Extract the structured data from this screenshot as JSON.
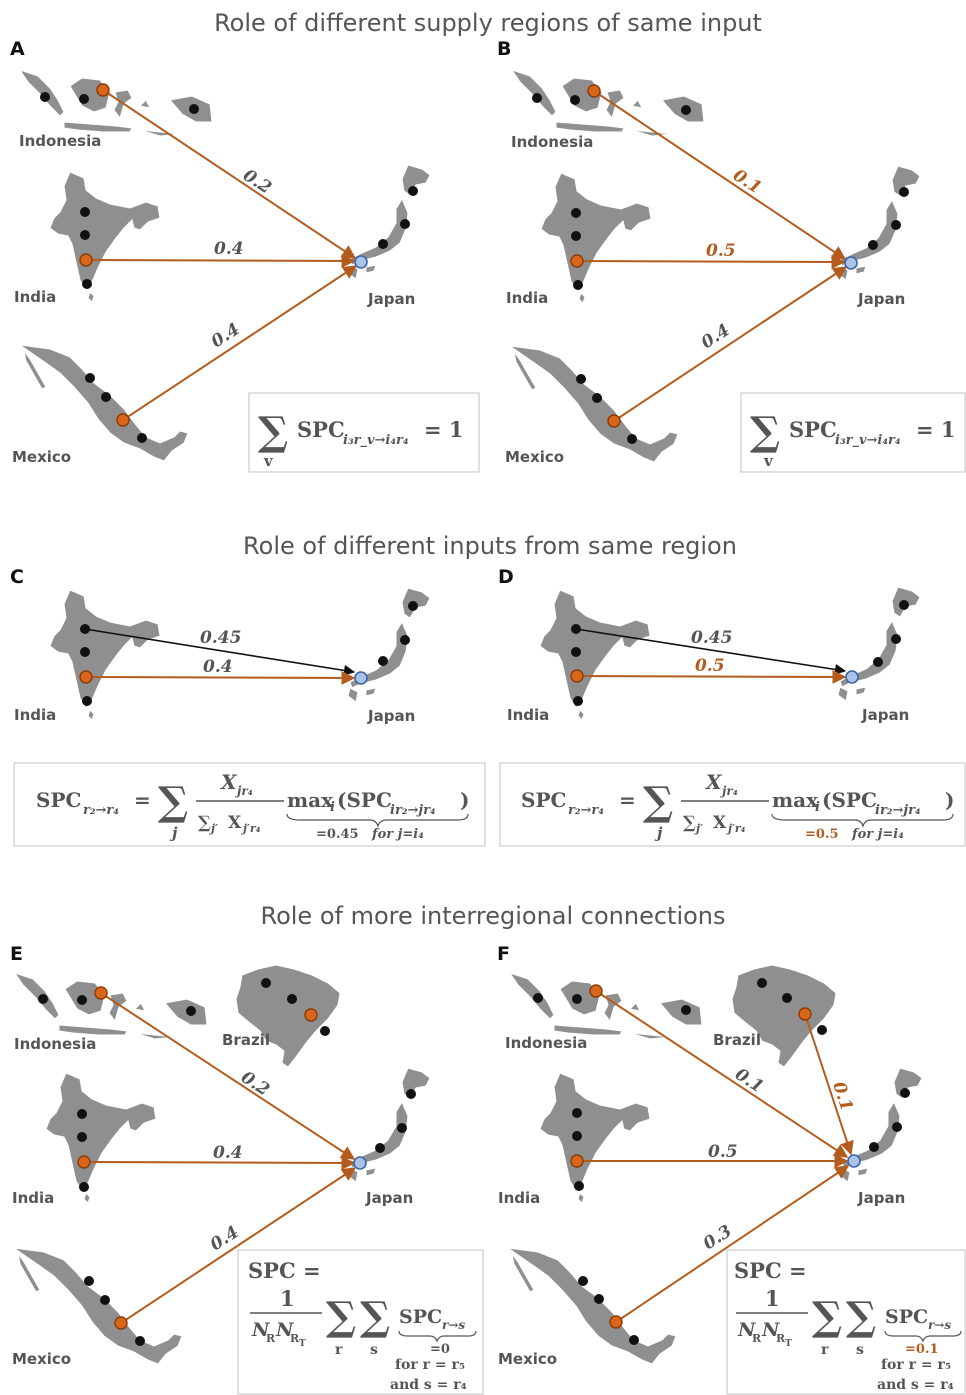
{
  "sections": [
    {
      "title": "Role of different supply regions of same input"
    },
    {
      "title": "Role of different inputs from same region"
    },
    {
      "title": "Role of more interregional connections"
    }
  ],
  "panels": {
    "A": {
      "letter": "A",
      "values": [
        "0.2",
        "0.4",
        "0.4"
      ]
    },
    "B": {
      "letter": "B",
      "values": [
        "0.1",
        "0.5",
        "0.4"
      ]
    },
    "C": {
      "letter": "C",
      "values": [
        "0.45",
        "0.4"
      ]
    },
    "D": {
      "letter": "D",
      "values": [
        "0.45",
        "0.5"
      ]
    },
    "E": {
      "letter": "E",
      "values": [
        "0.2",
        "0.4",
        "0.4"
      ]
    },
    "F": {
      "letter": "F",
      "values": [
        "0.1",
        "0.1",
        "0.5",
        "0.3"
      ]
    }
  },
  "countries": {
    "indonesia": "Indonesia",
    "india": "India",
    "mexico": "Mexico",
    "japan": "Japan",
    "brazil": "Brazil"
  },
  "formulas": {
    "ab": {
      "sum": "∑",
      "index": "v",
      "spc": "SPC",
      "sub": "i₃r_v→i₄r₄",
      "rhs": "= 1"
    },
    "cd": {
      "lhs": "SPC",
      "lhs_sub": "r₂→r₄",
      "eq": "=",
      "sum_index": "j",
      "num": "X",
      "num_sub": "jr₄",
      "den": "∑",
      "den_sub": "j′",
      "den_x": "X",
      "den_x_sub": "j′r₄",
      "max": "max",
      "max_sub": "i",
      "max_arg": "(SPC",
      "max_arg_sub": "ir₂→jr₄",
      "close": ")",
      "under_c": "=0.45",
      "under_d": "=0.5",
      "under_tail": "for j=i₄"
    },
    "ef": {
      "lhs": "SPC =",
      "one": "1",
      "den": "N",
      "den_sub1": "R",
      "den_sub2": "R",
      "den_sub2b": "T",
      "r": "r",
      "s": "s",
      "spc": "SPC",
      "spc_sub": "r→s",
      "under_e": "=0",
      "under_f": "=0.1",
      "cond1": "for r = r₅",
      "cond2": "and s = r₄"
    }
  }
}
